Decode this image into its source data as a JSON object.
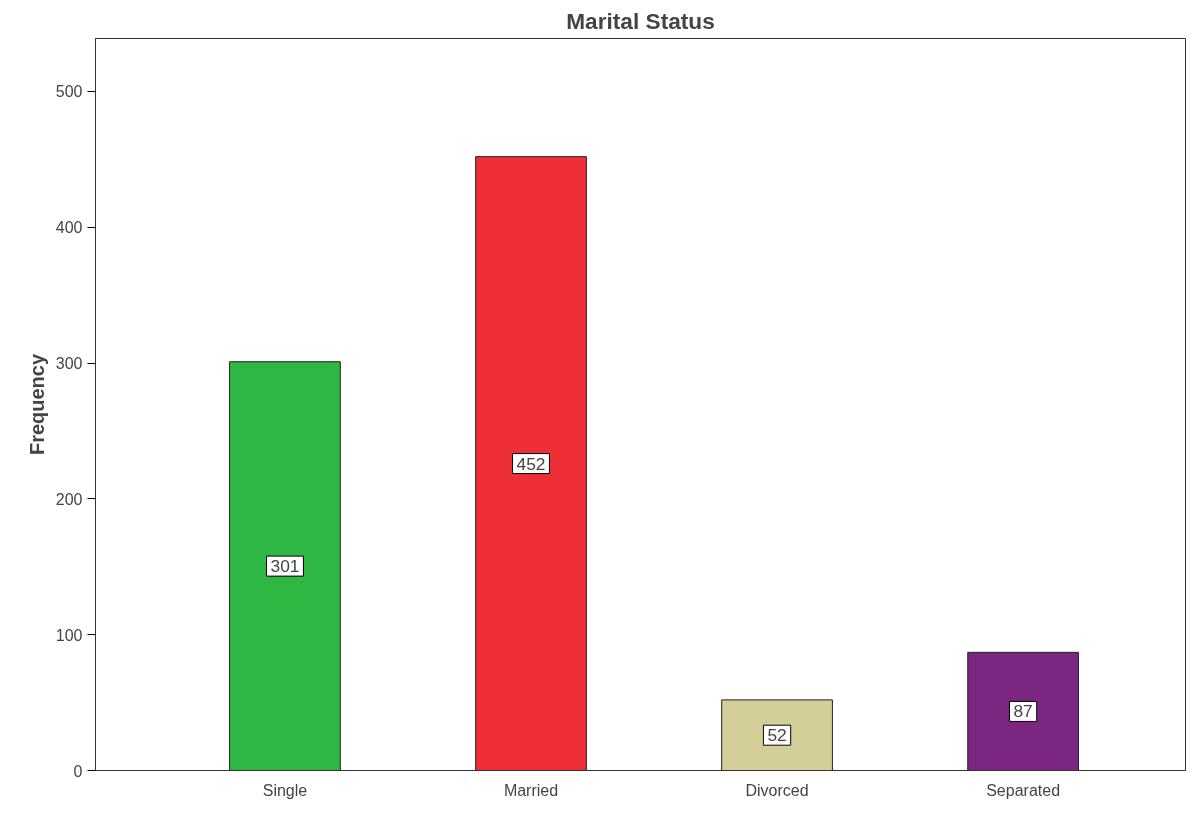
{
  "chart_data": {
    "type": "bar",
    "title": "Marital Status",
    "ylabel": "Frequency",
    "categories": [
      "Single",
      "Married",
      "Divorced",
      "Separated"
    ],
    "values": [
      301,
      452,
      52,
      87
    ],
    "colors": [
      "#2eb843",
      "#ef2f37",
      "#d4cf98",
      "#7b2680"
    ],
    "ylim": [
      0,
      539
    ],
    "yticks": [
      0,
      100,
      200,
      300,
      400,
      500
    ],
    "grid": false,
    "data_labels": true
  }
}
